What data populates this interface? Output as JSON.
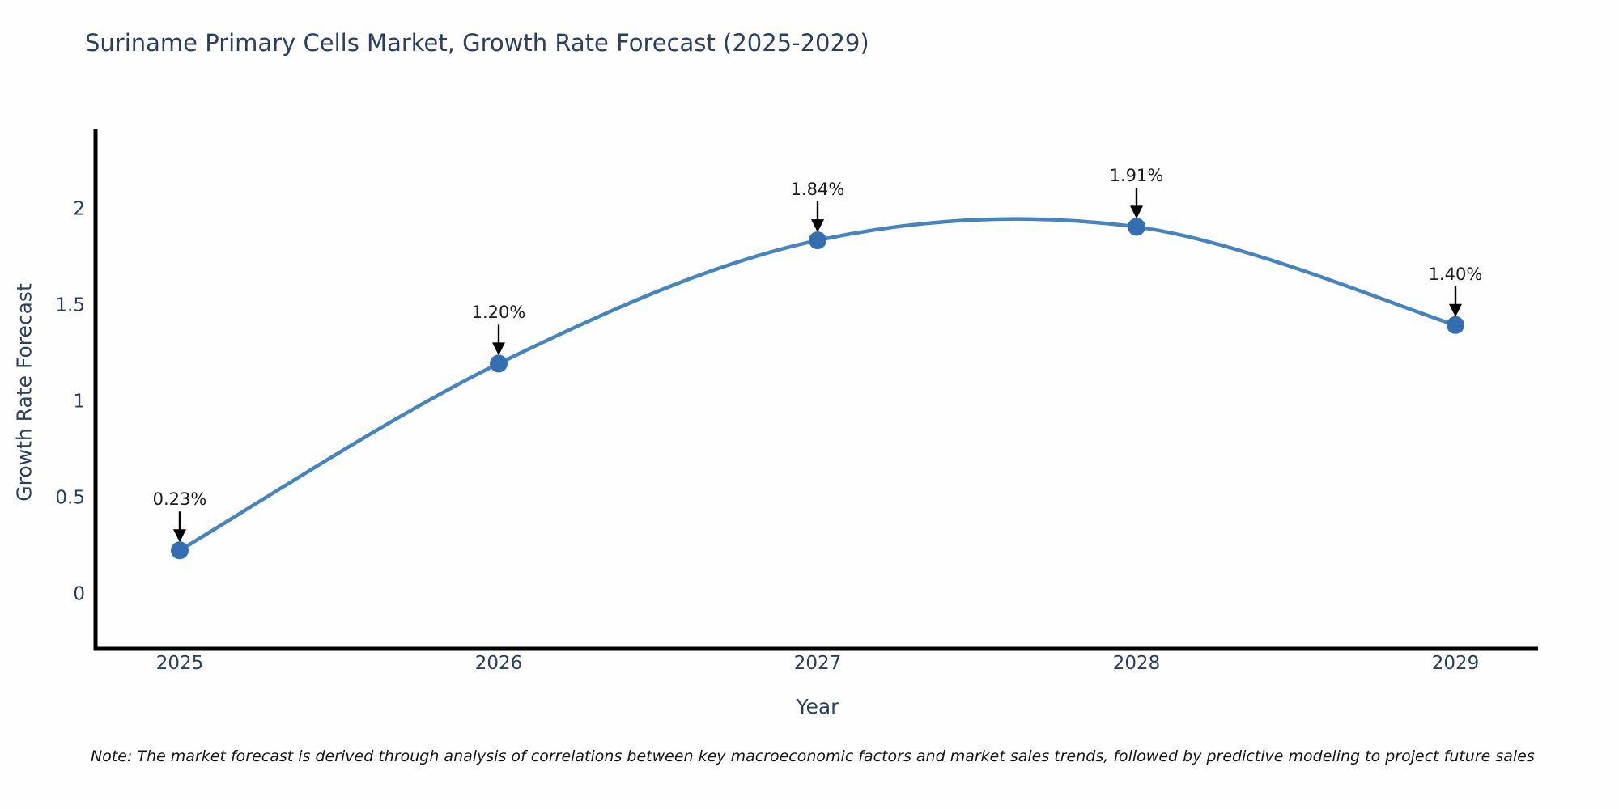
{
  "chart_data": {
    "type": "line",
    "title": "Suriname Primary Cells Market, Growth Rate Forecast (2025-2029)",
    "xlabel": "Year",
    "ylabel": "Growth Rate Forecast",
    "x": [
      2025,
      2026,
      2027,
      2028,
      2029
    ],
    "series": [
      {
        "name": "Growth Rate Forecast",
        "values": [
          0.23,
          1.2,
          1.84,
          1.91,
          1.4
        ]
      }
    ],
    "point_labels": [
      "0.23%",
      "1.20%",
      "1.84%",
      "1.91%",
      "1.40%"
    ],
    "xtick_labels": [
      "2025",
      "2026",
      "2027",
      "2028",
      "2029"
    ],
    "ytick_values": [
      0,
      0.5,
      1,
      1.5,
      2
    ],
    "ytick_labels": [
      "0",
      "0.5",
      "1",
      "1.5",
      "2"
    ],
    "xlim": [
      2024.73,
      2029.26
    ],
    "ylim": [
      -0.28,
      2.42
    ],
    "grid": false,
    "legend": "none",
    "line_shape": "spline",
    "annotation_style": "black-down-arrow",
    "note": "Note: The market forecast is derived through analysis of correlations between key macroeconomic factors and market sales trends, followed by predictive modeling to project future sales"
  },
  "colors": {
    "line": "#4484c0",
    "marker": "#336fb0",
    "axis": "#000000",
    "label_text": "#2a3f5f",
    "annotation_text": "#1c1c1c",
    "arrow": "#000000",
    "background": "#fefefe"
  }
}
